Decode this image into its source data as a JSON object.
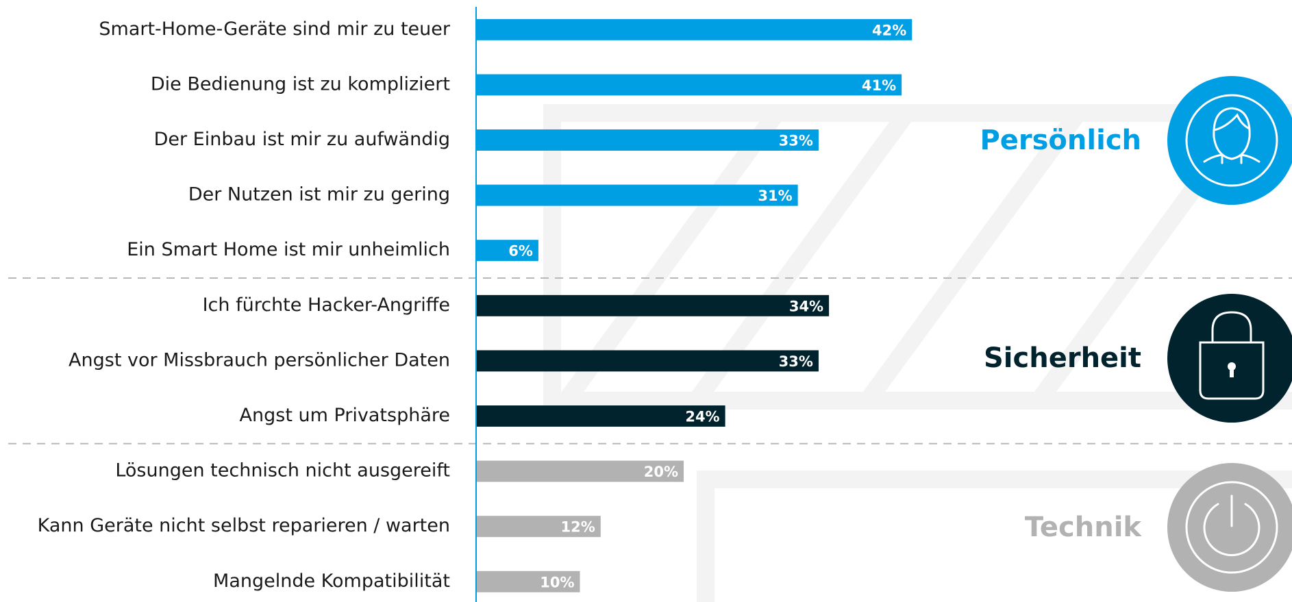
{
  "chart_data": {
    "type": "bar",
    "orientation": "horizontal",
    "groups": [
      {
        "name": "Persönlich",
        "color": "#009fe3",
        "categories": [
          "Smart-Home-Geräte sind mir zu teuer",
          "Die Bedienung ist zu kompliziert",
          "Der Einbau ist mir zu aufwändig",
          "Der Nutzen ist mir zu gering",
          "Ein Smart Home ist mir unheimlich"
        ],
        "values": [
          42,
          41,
          33,
          31,
          6
        ],
        "value_labels": [
          "42%",
          "41%",
          "33%",
          "31%",
          "6%"
        ]
      },
      {
        "name": "Sicherheit",
        "color": "#00232d",
        "categories": [
          "Ich fürchte Hacker-Angriffe",
          "Angst vor Missbrauch persönlicher Daten",
          "Angst um Privatsphäre"
        ],
        "values": [
          34,
          33,
          24
        ],
        "value_labels": [
          "34%",
          "33%",
          "24%"
        ]
      },
      {
        "name": "Technik",
        "color": "#b2b2b2",
        "categories": [
          "Lösungen technisch nicht ausgereift",
          "Kann Geräte nicht selbst reparieren / warten",
          "Mangelnde Kompatibilität"
        ],
        "values": [
          20,
          12,
          10
        ],
        "value_labels": [
          "20%",
          "12%",
          "10%"
        ]
      }
    ]
  }
}
